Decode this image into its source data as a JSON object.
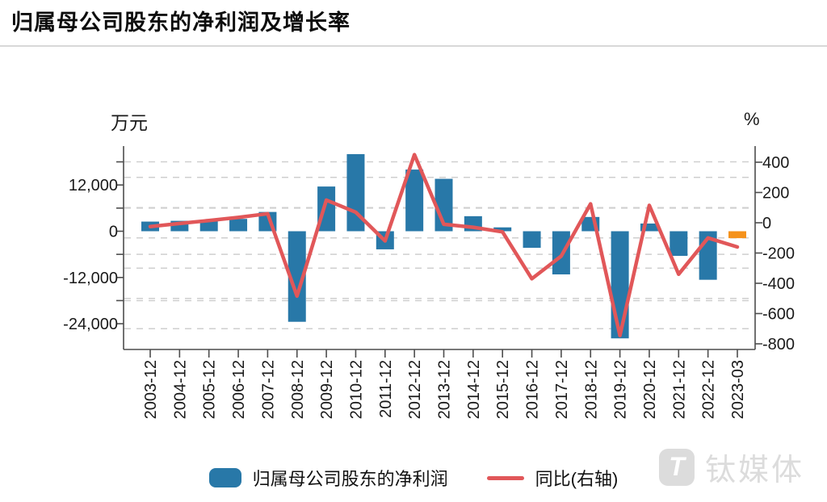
{
  "page": {
    "title": "归属母公司股东的净利润及增长率"
  },
  "chart": {
    "left_unit": "万元",
    "right_unit": "%"
  },
  "legend": {
    "bar_label": "归属母公司股东的净利润",
    "line_label": "同比(右轴)"
  },
  "watermark": {
    "logo_glyph": "T",
    "brand": "钛媒体"
  },
  "chart_data": {
    "type": "bar+line (dual y-axis)",
    "title": "归属母公司股东的净利润及增长率",
    "categories": [
      "2003-12",
      "2004-12",
      "2005-12",
      "2006-12",
      "2007-12",
      "2008-12",
      "2009-12",
      "2010-12",
      "2011-12",
      "2012-12",
      "2013-12",
      "2014-12",
      "2015-12",
      "2016-12",
      "2017-12",
      "2018-12",
      "2019-12",
      "2020-12",
      "2021-12",
      "2022-12",
      "2023-03"
    ],
    "series": [
      {
        "name": "归属母公司股东的净利润",
        "type": "bar",
        "axis": "left",
        "unit": "万元",
        "color": "#2878a8",
        "last_bar_color": "#f5921b",
        "values": [
          2500,
          2700,
          2800,
          3200,
          5000,
          -23500,
          11600,
          20000,
          -4700,
          16000,
          13600,
          3900,
          1000,
          -4300,
          -11200,
          3700,
          -27800,
          2000,
          -6400,
          -12600,
          -1800
        ]
      },
      {
        "name": "同比(右轴)",
        "type": "line",
        "axis": "right",
        "unit": "%",
        "color": "#e15759",
        "values": [
          -25,
          -5,
          15,
          35,
          60,
          -485,
          150,
          70,
          -120,
          450,
          -10,
          -30,
          -60,
          -370,
          -220,
          125,
          -745,
          115,
          -340,
          -100,
          -160
        ]
      }
    ],
    "left_axis": {
      "unit": "万元",
      "ticks": [
        12000,
        0,
        -12000,
        -24000
      ],
      "tick_labels": [
        "12,000",
        "0",
        "-12,000",
        "-24,000"
      ],
      "all_tick_positions": [
        18000,
        12000,
        6000,
        0,
        -6000,
        -12000,
        -18000,
        -24000
      ],
      "gridlines": [
        18000,
        6000,
        -6000,
        -18000
      ],
      "range": [
        -29500,
        22100
      ]
    },
    "right_axis": {
      "unit": "%",
      "ticks": [
        400,
        200,
        0,
        -200,
        -400,
        -600,
        -800
      ],
      "tick_labels": [
        "400",
        "200",
        "0",
        "-200",
        "-400",
        "-600",
        "-800"
      ],
      "gridlines": [
        300,
        100,
        -100,
        -300,
        -500,
        -700
      ],
      "range": [
        -836,
        507
      ]
    },
    "grid": "dashed horizontal",
    "legend_position": "bottom center"
  }
}
